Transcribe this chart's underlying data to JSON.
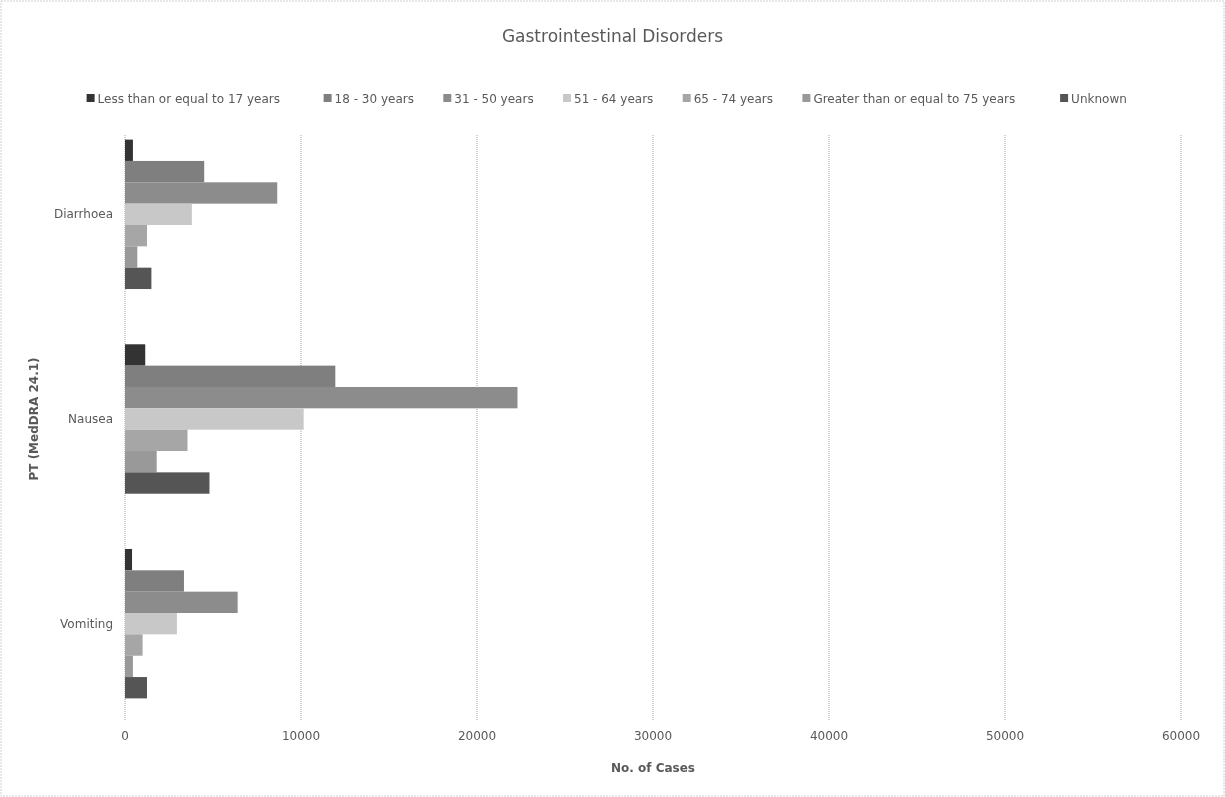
{
  "chart_data": {
    "type": "bar",
    "orientation": "horizontal",
    "title": "Gastrointestinal Disorders",
    "xlabel": "No. of Cases",
    "ylabel": "PT  (MedDRA 24.1)",
    "categories": [
      "Diarrhoea",
      "Nausea",
      "Vomiting"
    ],
    "series": [
      {
        "name": "Less than or equal to 17 years",
        "color": "#333333",
        "values": [
          450,
          1150,
          400
        ]
      },
      {
        "name": "18 - 30 years",
        "color": "#7f7f7f",
        "values": [
          4500,
          11950,
          3350
        ]
      },
      {
        "name": "31 - 50 years",
        "color": "#8c8c8c",
        "values": [
          8650,
          22300,
          6400
        ]
      },
      {
        "name": "51 - 64 years",
        "color": "#c8c8c8",
        "values": [
          3800,
          10150,
          2950
        ]
      },
      {
        "name": "65 - 74 years",
        "color": "#a6a6a6",
        "values": [
          1250,
          3550,
          1000
        ]
      },
      {
        "name": "Greater than or equal to 75 years",
        "color": "#999999",
        "values": [
          700,
          1800,
          450
        ]
      },
      {
        "name": "Unknown",
        "color": "#555555",
        "values": [
          1500,
          4800,
          1250
        ]
      }
    ],
    "xlim": [
      0,
      60000
    ],
    "xticks": [
      0,
      10000,
      20000,
      30000,
      40000,
      50000,
      60000
    ],
    "grid": "x",
    "legend": "top"
  }
}
